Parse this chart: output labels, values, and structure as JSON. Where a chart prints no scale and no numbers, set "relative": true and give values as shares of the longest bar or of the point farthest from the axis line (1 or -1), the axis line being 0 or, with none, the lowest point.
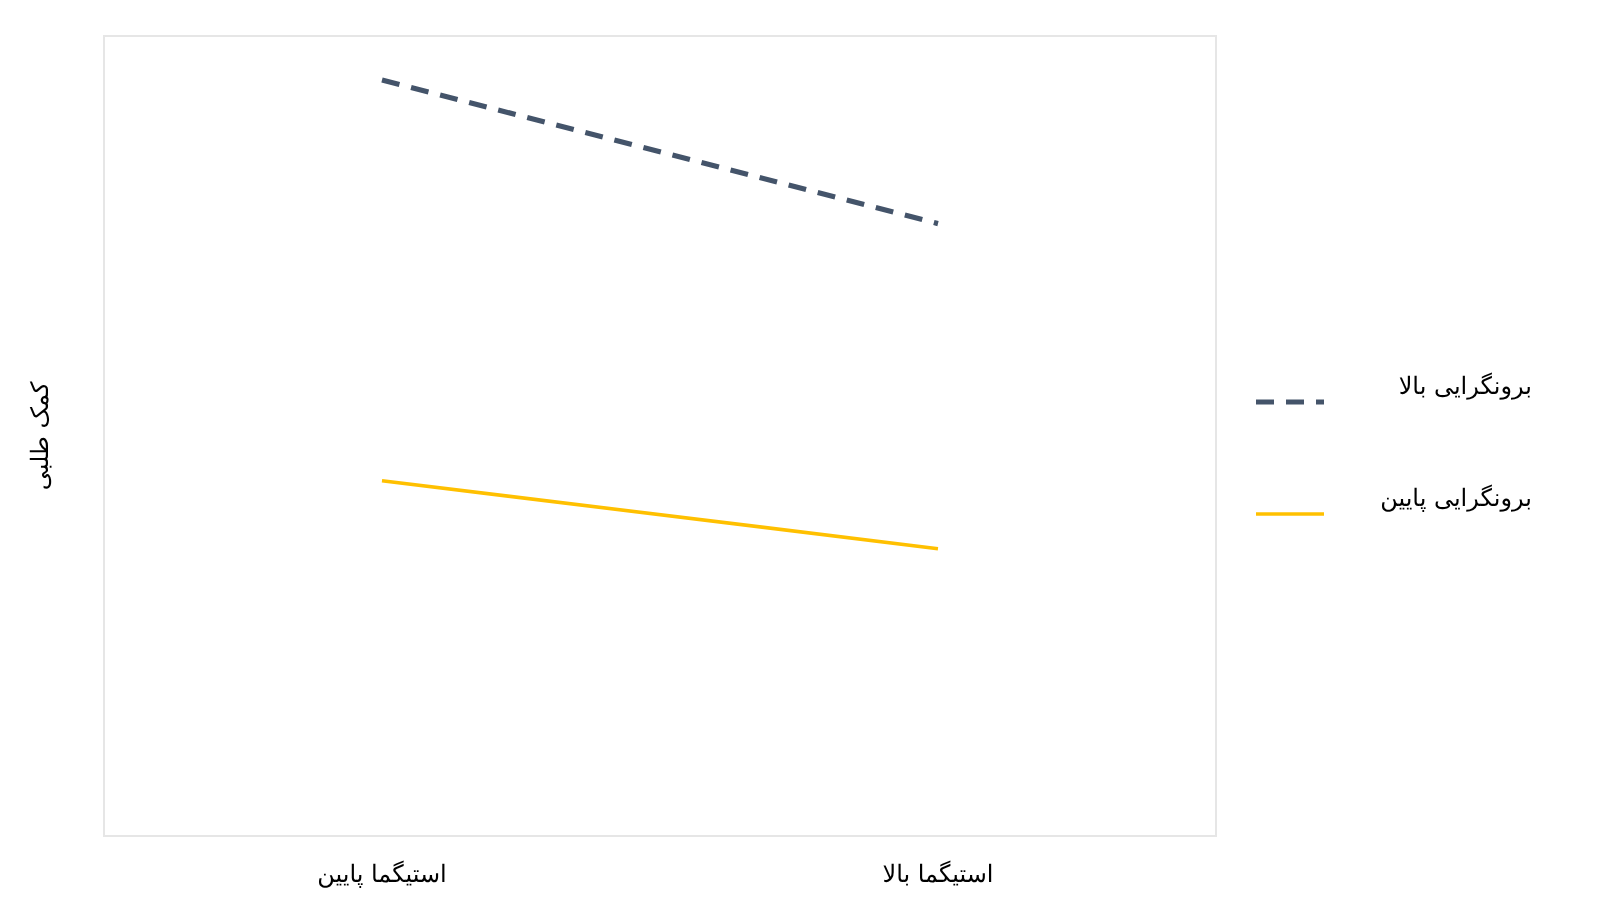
{
  "chart_data": {
    "type": "line",
    "relative": true,
    "ylabel": "کمک طلبی",
    "categories": [
      "استیگما پایین",
      "استیگما بالا"
    ],
    "series": [
      {
        "name": "برونگرایی بالا",
        "color": "#44546a",
        "line_style": "dashed",
        "values": [
          1,
          0.81
        ]
      },
      {
        "name": "برونگرایی پایین",
        "color": "#ffc000",
        "line_style": "solid",
        "values": [
          0.47,
          0.38
        ]
      }
    ],
    "legend": "right"
  }
}
